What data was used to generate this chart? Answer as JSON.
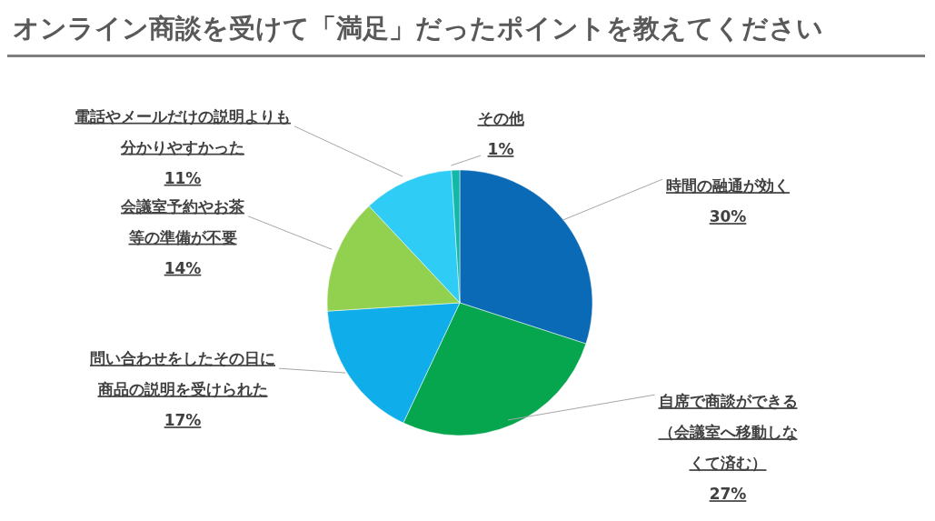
{
  "chart_data": {
    "type": "pie",
    "title": "オンライン商談を受けて「満足」だったポイントを教えてください",
    "categories": [
      "時間の融通が効く",
      "自席で商談ができる（会議室へ移動しなくて済む）",
      "問い合わせをしたその日に商品の説明を受けられた",
      "会議室予約やお茶等の準備が不要",
      "電話やメールだけの説明よりも分かりやすかった",
      "その他"
    ],
    "values": [
      30,
      27,
      17,
      14,
      11,
      1
    ],
    "value_labels": [
      "30%",
      "27%",
      "17%",
      "14%",
      "11%",
      "1%"
    ],
    "colors": [
      "#0a6ab5",
      "#06a64f",
      "#0fadea",
      "#92d050",
      "#2fcdf5",
      "#14b8a8"
    ]
  }
}
